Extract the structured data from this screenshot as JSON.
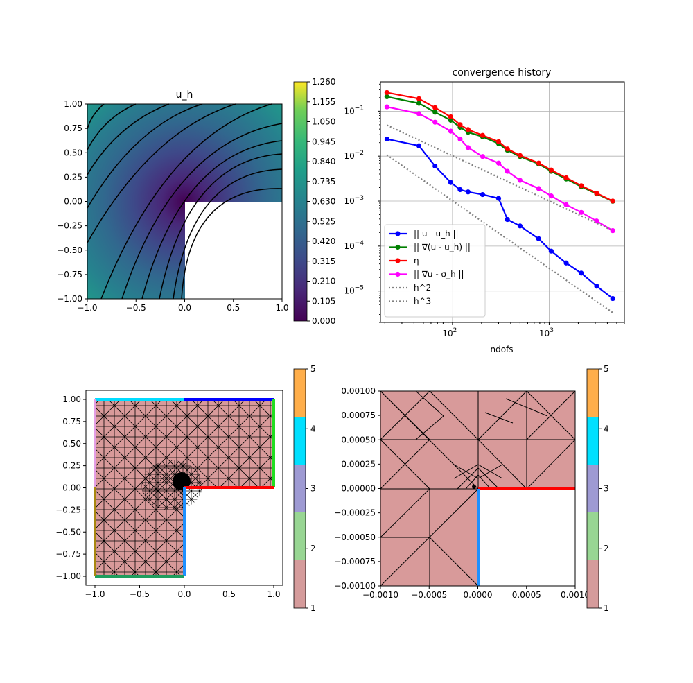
{
  "chart_data": [
    {
      "id": "uh",
      "type": "heatmap",
      "title": "u_h",
      "xlim": [
        -1,
        1
      ],
      "ylim": [
        -1,
        1
      ],
      "xticks": [
        "−1.0",
        "−0.5",
        "0.0",
        "0.5",
        "1.0"
      ],
      "yticks": [
        "1.00",
        "0.75",
        "0.50",
        "0.25",
        "0.00",
        "−0.25",
        "−0.50",
        "−0.75",
        "−1.00"
      ],
      "colorbar": {
        "range": [
          0,
          1.26
        ],
        "colormap": "viridis",
        "ticks": [
          "1.260",
          "1.155",
          "1.050",
          "0.945",
          "0.840",
          "0.735",
          "0.630",
          "0.525",
          "0.420",
          "0.315",
          "0.210",
          "0.105",
          "0.000"
        ]
      },
      "domain": "L-shaped (missing lower-right quadrant x>0, y<0)",
      "contour_levels": [
        0.105,
        0.21,
        0.315,
        0.42,
        0.525,
        0.63,
        0.735,
        0.84,
        0.945,
        1.05,
        1.155
      ]
    },
    {
      "id": "conv",
      "type": "line",
      "title": "convergence history",
      "xlabel": "ndofs",
      "ylabel": "",
      "xscale": "log",
      "yscale": "log",
      "xlim": [
        18,
        6000
      ],
      "ylim": [
        2e-06,
        0.45
      ],
      "grid": true,
      "legend_position": "lower-left",
      "xtick_labels": [
        {
          "base": "10",
          "exp": "2"
        },
        {
          "base": "10",
          "exp": "3"
        }
      ],
      "ytick_labels": [
        {
          "base": "10",
          "exp": "−1"
        },
        {
          "base": "10",
          "exp": "−2"
        },
        {
          "base": "10",
          "exp": "−3"
        },
        {
          "base": "10",
          "exp": "−4"
        },
        {
          "base": "10",
          "exp": "−5"
        }
      ],
      "x": [
        21,
        45,
        66,
        96,
        120,
        145,
        205,
        300,
        370,
        500,
        780,
        1050,
        1500,
        2150,
        3100,
        4550
      ],
      "series": [
        {
          "name": "|| u - u_h ||",
          "color": "#0000ff",
          "style": "solid-marker",
          "values": [
            0.024,
            0.017,
            0.006,
            0.0026,
            0.0018,
            0.0016,
            0.0014,
            0.00115,
            0.00039,
            0.00028,
            0.000145,
            7.7e-05,
            4.2e-05,
            2.5e-05,
            1.28e-05,
            6.8e-06
          ]
        },
        {
          "name": "|| ∇(u - u_h) ||",
          "color": "#008000",
          "style": "solid-marker",
          "values": [
            0.21,
            0.15,
            0.095,
            0.063,
            0.044,
            0.034,
            0.027,
            0.019,
            0.0135,
            0.0098,
            0.0067,
            0.0046,
            0.0031,
            0.0021,
            0.00145,
            0.00099
          ]
        },
        {
          "name": "η",
          "color": "#ff0000",
          "style": "solid-marker",
          "values": [
            0.26,
            0.19,
            0.12,
            0.075,
            0.05,
            0.039,
            0.029,
            0.021,
            0.0145,
            0.0103,
            0.007,
            0.0049,
            0.0033,
            0.0022,
            0.0015,
            0.001
          ]
        },
        {
          "name": "|| ∇u - σ_h ||",
          "color": "#ff00ff",
          "style": "solid-marker",
          "values": [
            0.125,
            0.088,
            0.057,
            0.036,
            0.024,
            0.0155,
            0.0098,
            0.007,
            0.0046,
            0.0029,
            0.0019,
            0.0013,
            0.00083,
            0.00056,
            0.00036,
            0.00022
          ]
        },
        {
          "name": "h^2",
          "color": "#808080",
          "style": "dotted",
          "x": [
            21,
            4550
          ],
          "values": [
            0.049,
            0.00022
          ]
        },
        {
          "name": "h^3",
          "color": "#808080",
          "style": "dotted",
          "x": [
            21,
            4550
          ],
          "values": [
            0.0106,
            3.3e-06
          ]
        }
      ]
    },
    {
      "id": "mesh",
      "type": "other",
      "xlim": [
        -1.1,
        1.1
      ],
      "ylim": [
        -1.1,
        1.1
      ],
      "xticks": [
        "−1.0",
        "−0.5",
        "0.0",
        "0.5",
        "1.0"
      ],
      "yticks": [
        "1.00",
        "0.75",
        "0.50",
        "0.25",
        "0.00",
        "−0.25",
        "−0.50",
        "−0.75",
        "−1.00"
      ],
      "colorbar": {
        "ticks": [
          "5",
          "4",
          "3",
          "2",
          "1"
        ],
        "colors": [
          "#d59b9b",
          "#98d693",
          "#9e9ad3",
          "#00e0ff",
          "#ffae4a"
        ]
      },
      "fill_color": "#d89a9a",
      "boundaries": [
        {
          "label": "top-left",
          "color": "#00dcff"
        },
        {
          "label": "top-right",
          "color": "#0000ff"
        },
        {
          "label": "right",
          "color": "#22dd22"
        },
        {
          "label": "reentrant-horizontal",
          "color": "#ff0000"
        },
        {
          "label": "reentrant-vertical",
          "color": "#1e90ff"
        },
        {
          "label": "bottom",
          "color": "#1f9e5e"
        },
        {
          "label": "left-lower",
          "color": "#a8870f"
        },
        {
          "label": "left-upper",
          "color": "#e49ee4"
        }
      ]
    },
    {
      "id": "zoom",
      "type": "other",
      "xlim": [
        -0.001,
        0.001
      ],
      "ylim": [
        -0.001,
        0.001
      ],
      "xticks": [
        "−0.0010",
        "−0.0005",
        "0.0000",
        "0.0005",
        "0.0010"
      ],
      "yticks": [
        "0.00100",
        "0.00075",
        "0.00050",
        "0.00025",
        "0.00000",
        "−0.00025",
        "−0.00050",
        "−0.00075",
        "−0.00100"
      ],
      "colorbar": {
        "ticks": [
          "5",
          "4",
          "3",
          "2",
          "1"
        ],
        "colors": [
          "#d59b9b",
          "#98d693",
          "#9e9ad3",
          "#00e0ff",
          "#ffae4a"
        ]
      }
    }
  ]
}
